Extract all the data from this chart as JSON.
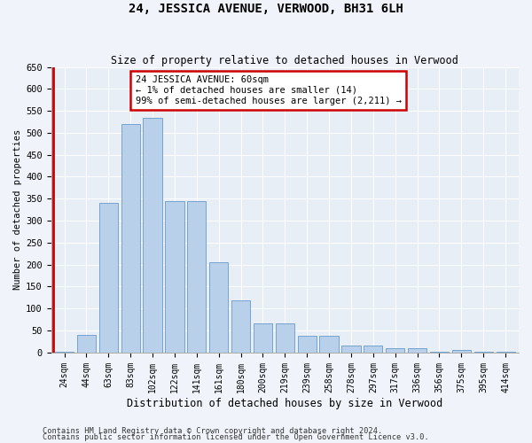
{
  "title": "24, JESSICA AVENUE, VERWOOD, BH31 6LH",
  "subtitle": "Size of property relative to detached houses in Verwood",
  "xlabel": "Distribution of detached houses by size in Verwood",
  "ylabel": "Number of detached properties",
  "categories": [
    "24sqm",
    "44sqm",
    "63sqm",
    "83sqm",
    "102sqm",
    "122sqm",
    "141sqm",
    "161sqm",
    "180sqm",
    "200sqm",
    "219sqm",
    "239sqm",
    "258sqm",
    "278sqm",
    "297sqm",
    "317sqm",
    "336sqm",
    "356sqm",
    "375sqm",
    "395sqm",
    "414sqm"
  ],
  "values": [
    2,
    40,
    340,
    520,
    535,
    345,
    345,
    205,
    118,
    65,
    65,
    37,
    37,
    15,
    15,
    10,
    10,
    2,
    5,
    2,
    2
  ],
  "bar_color": "#b8d0ea",
  "bar_edge_color": "#6699cc",
  "highlight_color": "#cc0000",
  "annotation_title": "24 JESSICA AVENUE: 60sqm",
  "annotation_line1": "← 1% of detached houses are smaller (14)",
  "annotation_line2": "99% of semi-detached houses are larger (2,211) →",
  "annotation_box_facecolor": "#ffffff",
  "annotation_box_edgecolor": "#cc0000",
  "ylim_max": 650,
  "yticks": [
    0,
    50,
    100,
    150,
    200,
    250,
    300,
    350,
    400,
    450,
    500,
    550,
    600,
    650
  ],
  "footer1": "Contains HM Land Registry data © Crown copyright and database right 2024.",
  "footer2": "Contains public sector information licensed under the Open Government Licence v3.0.",
  "fig_bg": "#f0f4fa",
  "axes_bg": "#e8eef5"
}
